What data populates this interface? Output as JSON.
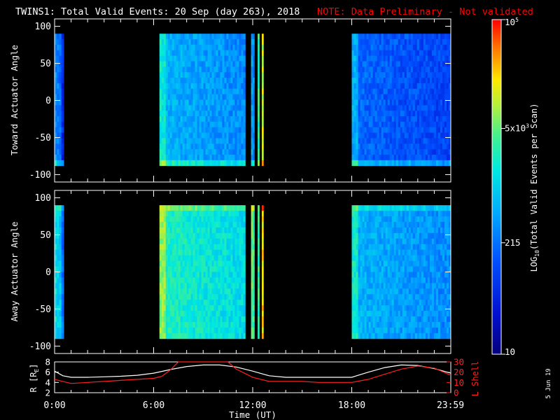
{
  "chart_data": {
    "type": "heatmap",
    "title": "TWINS1: Total Valid Events: 20 Sep (day 263), 2018",
    "note": "NOTE: Data Preliminary - Not validated",
    "date_stamp": "5 Jun 19",
    "xlabel": "Time (UT)",
    "xlim_hours": [
      0,
      24
    ],
    "x_ticks": [
      "0:00",
      "6:00",
      "12:00",
      "18:00",
      "23:59"
    ],
    "x_tick_hours": [
      0,
      6,
      12,
      18,
      23.98
    ],
    "colorbar": {
      "label": "LOG10(Total Valid Events per Scan)",
      "label_prefix": "LOG",
      "label_sub": "10",
      "label_suffix": "(Total Valid Events per Scan)",
      "scale": "log",
      "range": [
        10,
        100000
      ],
      "ticks": [
        {
          "value": 10,
          "text": "10"
        },
        {
          "value": 215,
          "text": "215"
        },
        {
          "value": 5000,
          "text": "5x10",
          "sup": "3"
        },
        {
          "value": 100000,
          "text": "10",
          "sup": "5"
        }
      ]
    },
    "panels": [
      {
        "name": "toward",
        "ylabel": "Toward Actuator Angle",
        "ylim": [
          -110,
          110
        ],
        "yticks": [
          "100",
          "50",
          "0",
          "-50",
          "-100"
        ],
        "ytick_values": [
          100,
          50,
          0,
          -50,
          -100
        ],
        "angle_range": [
          -88,
          90
        ],
        "segments": [
          {
            "start_h": 0.0,
            "end_h": 0.55,
            "level": 0.25
          },
          {
            "start_h": 6.35,
            "end_h": 11.55,
            "level": 0.45
          },
          {
            "start_h": 11.9,
            "end_h": 12.1,
            "level": 0.3
          },
          {
            "start_h": 12.3,
            "end_h": 12.4,
            "level": 0.5
          },
          {
            "start_h": 12.55,
            "end_h": 12.65,
            "level": 0.65
          },
          {
            "start_h": 18.0,
            "end_h": 24.0,
            "level": 0.32
          }
        ]
      },
      {
        "name": "away",
        "ylabel": "Away Actuator Angle",
        "ylim": [
          -110,
          110
        ],
        "yticks": [
          "100",
          "50",
          "0",
          "-50",
          "-100"
        ],
        "ytick_values": [
          100,
          50,
          0,
          -50,
          -100
        ],
        "angle_range": [
          -90,
          90
        ],
        "segments": [
          {
            "start_h": 0.0,
            "end_h": 0.55,
            "level": 0.4
          },
          {
            "start_h": 6.35,
            "end_h": 11.55,
            "level": 0.6
          },
          {
            "start_h": 11.9,
            "end_h": 12.1,
            "level": 0.55
          },
          {
            "start_h": 12.3,
            "end_h": 12.4,
            "level": 0.5
          },
          {
            "start_h": 12.55,
            "end_h": 12.65,
            "level": 0.7
          },
          {
            "start_h": 18.0,
            "end_h": 24.0,
            "level": 0.45
          }
        ]
      }
    ],
    "orbit": {
      "r_label": "R [RE]",
      "r_label_main": "R [R",
      "r_label_sub": "E",
      "r_label_end": "]",
      "r_ylim": [
        2,
        8
      ],
      "r_ticks": [
        "8",
        "6",
        "4",
        "2"
      ],
      "r_tick_values": [
        8,
        6,
        4,
        2
      ],
      "l_label": "L Shell",
      "l_ylim": [
        0,
        30
      ],
      "l_ticks": [
        "30",
        "20",
        "10",
        "0"
      ],
      "l_tick_values": [
        30,
        20,
        10,
        0
      ],
      "r_series": {
        "name": "R",
        "color": "#ffffff",
        "x": [
          0,
          0.5,
          1,
          2,
          3,
          4,
          5,
          6,
          7,
          8,
          9,
          10,
          11,
          12,
          13,
          14,
          15,
          16,
          17,
          18,
          19,
          20,
          21,
          22,
          23,
          24
        ],
        "y": [
          6.2,
          5.3,
          5.0,
          5.0,
          5.1,
          5.2,
          5.4,
          5.8,
          6.5,
          7.1,
          7.4,
          7.4,
          7.0,
          6.2,
          5.3,
          5.0,
          5.0,
          5.0,
          5.0,
          5.0,
          6.0,
          6.9,
          7.4,
          7.3,
          6.7,
          5.8
        ]
      },
      "l_series": {
        "name": "L Shell",
        "color": "#ff2020",
        "x": [
          0,
          0.5,
          1,
          2,
          3,
          4,
          5,
          6,
          6.5,
          7,
          7.5,
          10.5,
          11,
          11.5,
          12,
          13,
          14,
          15,
          16,
          17,
          18,
          19,
          20,
          21,
          22,
          23,
          24
        ],
        "y": [
          13,
          11,
          9,
          10,
          11,
          12,
          13,
          14,
          16,
          22,
          30,
          30,
          23,
          19,
          15,
          11,
          11,
          11,
          10,
          10,
          10,
          13,
          18,
          23,
          26,
          24,
          17
        ]
      }
    }
  },
  "colors": {
    "background": "#000000",
    "axes": "#ffffff",
    "title": "#ffffff",
    "note": "#ff0000",
    "l_shell": "#ff2020"
  }
}
